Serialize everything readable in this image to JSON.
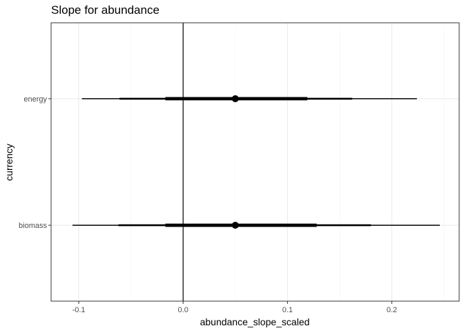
{
  "chart_data": {
    "type": "interval",
    "title": "Slope for abundance",
    "xlabel": "abundance_slope_scaled",
    "ylabel": "currency",
    "xlim": [
      -0.1265,
      0.2645
    ],
    "x_ticks": [
      -0.1,
      0.0,
      0.1,
      0.2
    ],
    "x_tick_labels": [
      "-0.1",
      "0.0",
      "0.1",
      "0.2"
    ],
    "reference_line_x": 0,
    "grid": true,
    "categories": [
      "biomass",
      "energy"
    ],
    "series": [
      {
        "category": "energy",
        "estimate": 0.05,
        "interval_50": [
          -0.017,
          0.119
        ],
        "interval_80": [
          -0.061,
          0.162
        ],
        "interval_95": [
          -0.097,
          0.224
        ]
      },
      {
        "category": "biomass",
        "estimate": 0.05,
        "interval_50": [
          -0.017,
          0.128
        ],
        "interval_80": [
          -0.062,
          0.18
        ],
        "interval_95": [
          -0.106,
          0.246
        ]
      }
    ]
  },
  "colors": {
    "ink": "#000000",
    "grid_major": "#ebebeb",
    "grid_minor": "#f5f5f5",
    "panel_border": "#333333",
    "tick_text": "#4d4d4d"
  }
}
